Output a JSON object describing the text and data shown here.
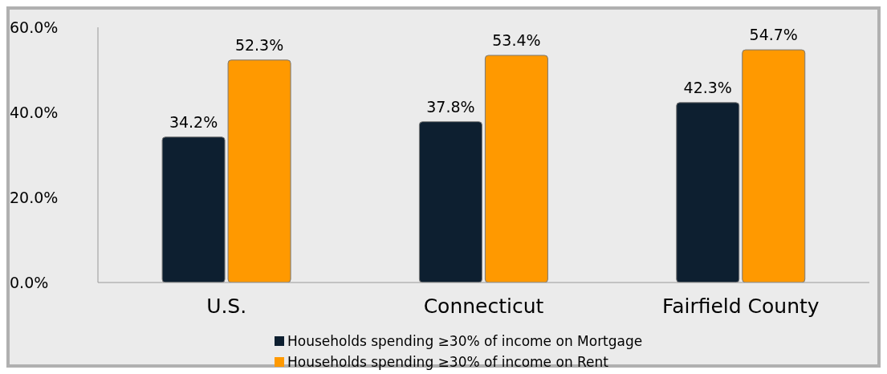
{
  "chart_data": {
    "type": "bar",
    "categories": [
      "U.S.",
      "Connecticut",
      "Fairfield County"
    ],
    "series": [
      {
        "name": "Households spending ≥30% of income on Mortgage",
        "color": "#0d1f30",
        "values": [
          34.2,
          37.8,
          42.3
        ],
        "value_labels": [
          "34.2%",
          "37.8%",
          "42.3%"
        ]
      },
      {
        "name": "Households spending ≥30% of income on Rent",
        "color": "#ff9900",
        "values": [
          52.3,
          53.4,
          54.7
        ],
        "value_labels": [
          "52.3%",
          "53.4%",
          "54.7%"
        ]
      }
    ],
    "ylim": [
      0,
      60
    ],
    "yticks": [
      {
        "value": 0,
        "label": "0.0%"
      },
      {
        "value": 20,
        "label": "20.0%"
      },
      {
        "value": 40,
        "label": "40.0%"
      },
      {
        "value": 60,
        "label": "60.0%"
      }
    ],
    "grid": false,
    "legend": "bottom"
  }
}
